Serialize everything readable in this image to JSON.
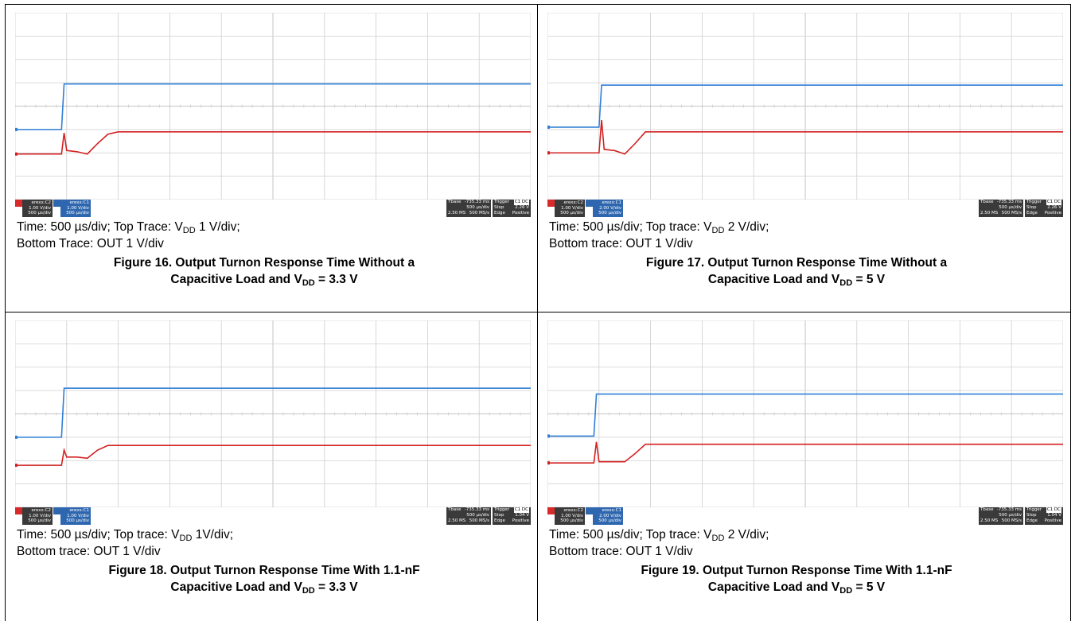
{
  "figures": [
    {
      "id": "fig16",
      "desc_line1_pre": "Time: 500 µs/div; Top Trace: V",
      "desc_line1_sub": "DD",
      "desc_line1_post": " 1 V/div;",
      "desc_line2": "Bottom Trace: OUT 1 V/div",
      "caption_line1": "Figure 16. Output Turnon Response Time Without a",
      "caption_line2_pre": "Capacitive Load and V",
      "caption_line2_sub": "DD",
      "caption_line2_post": " = 3.3 V",
      "ch1": {
        "hdr": "erexx:C2",
        "vdiv": "1.00 V/div",
        "tdiv": "500 µs/div"
      },
      "ch2": {
        "hdr": "erexx:C1",
        "vdiv": "1.00 V/div",
        "tdiv": "500 µs/div"
      },
      "tbase": {
        "label": "Tbase",
        "value": "-735.33 ms",
        "rate": "500 µs/div",
        "samples": "2.50 MS",
        "srate": "500 MS/s"
      },
      "trigger": {
        "label": "Trigger",
        "badge": "C1 DC",
        "mode": "Stop",
        "level": "2.26 V",
        "type": "Edge",
        "slope": "Positive"
      }
    },
    {
      "id": "fig17",
      "desc_line1_pre": "Time: 500 µs/div; Top trace: V",
      "desc_line1_sub": "DD",
      "desc_line1_post": " 2 V/div;",
      "desc_line2": "Bottom trace: OUT 1 V/div",
      "caption_line1": "Figure 17. Output Turnon Response Time Without a",
      "caption_line2_pre": "Capacitive Load and V",
      "caption_line2_sub": "DD",
      "caption_line2_post": " = 5 V",
      "ch1": {
        "hdr": "erexx:C2",
        "vdiv": "1.00 V/div",
        "tdiv": "500 µs/div"
      },
      "ch2": {
        "hdr": "erexx:C1",
        "vdiv": "2.00 V/div",
        "tdiv": "500 µs/div"
      },
      "tbase": {
        "label": "Tbase",
        "value": "-735.33 ms",
        "rate": "500 µs/div",
        "samples": "2.50 MS",
        "srate": "500 MS/s"
      },
      "trigger": {
        "label": "Trigger",
        "badge": "C1 DC",
        "mode": "Stop",
        "level": "2.26 V",
        "type": "Edge",
        "slope": "Positive"
      }
    },
    {
      "id": "fig18",
      "desc_line1_pre": "Time: 500 µs/div; Top trace: V",
      "desc_line1_sub": "DD",
      "desc_line1_post": " 1V/div;",
      "desc_line2": "Bottom trace: OUT 1 V/div",
      "caption_line1": "Figure 18. Output Turnon Response Time With 1.1-nF",
      "caption_line2_pre": "Capacitive Load and V",
      "caption_line2_sub": "DD",
      "caption_line2_post": " = 3.3 V",
      "ch1": {
        "hdr": "erexx:C2",
        "vdiv": "1.00 V/div",
        "tdiv": "500 µs/div"
      },
      "ch2": {
        "hdr": "erexx:C1",
        "vdiv": "1.00 V/div",
        "tdiv": "500 µs/div"
      },
      "tbase": {
        "label": "Tbase",
        "value": "-735.33 ms",
        "rate": "500 µs/div",
        "samples": "2.50 MS",
        "srate": "500 MS/s"
      },
      "trigger": {
        "label": "Trigger",
        "badge": "C1 DC",
        "mode": "Stop",
        "level": "1.04 V",
        "type": "Edge",
        "slope": "Positive"
      }
    },
    {
      "id": "fig19",
      "desc_line1_pre": "Time: 500 µs/div; Top trace: V",
      "desc_line1_sub": "DD",
      "desc_line1_post": " 2 V/div;",
      "desc_line2": "Bottom trace: OUT 1 V/div",
      "caption_line1": "Figure 19. Output Turnon Response Time With 1.1-nF",
      "caption_line2_pre": "Capacitive Load and V",
      "caption_line2_sub": "DD",
      "caption_line2_post": " = 5 V",
      "ch1": {
        "hdr": "erexx:C2",
        "vdiv": "1.00 V/div",
        "tdiv": "500 µs/div"
      },
      "ch2": {
        "hdr": "erexx:C1",
        "vdiv": "2.00 V/div",
        "tdiv": "500 µs/div"
      },
      "tbase": {
        "label": "Tbase",
        "value": "-735.33 ms",
        "rate": "500 µs/div",
        "samples": "2.50 MS",
        "srate": "500 MS/s"
      },
      "trigger": {
        "label": "Trigger",
        "badge": "C1 DC",
        "mode": "Stop",
        "level": "1.04 V",
        "type": "Edge",
        "slope": "Positive"
      }
    }
  ],
  "colors": {
    "vdd_trace": "#2f7fd6",
    "out_trace": "#d32020",
    "grid": "#cfcfcf",
    "statusbar": "#3a3a3a",
    "statusbar_blue": "#2e67b0"
  },
  "chart_data": [
    {
      "type": "line",
      "grid": true,
      "x": [
        0,
        0.9,
        0.95,
        1.0,
        1.2,
        1.4,
        1.6,
        1.8,
        2.0,
        2.5,
        10
      ],
      "series": [
        {
          "values": [
            -1.0,
            -1.0,
            0.95,
            0.95,
            0.95,
            0.95,
            0.95,
            0.95,
            0.95,
            0.95,
            0.95
          ]
        },
        {
          "values": [
            -2.05,
            -2.05,
            -1.15,
            -1.9,
            -1.95,
            -2.05,
            -1.6,
            -1.2,
            -1.1,
            -1.1,
            -1.1
          ]
        }
      ]
    },
    {
      "type": "line",
      "grid": true,
      "x": [
        0,
        1.0,
        1.05,
        1.1,
        1.3,
        1.5,
        1.7,
        1.9,
        2.1,
        2.5,
        10
      ],
      "series": [
        {
          "values": [
            -0.9,
            -0.9,
            0.9,
            0.9,
            0.9,
            0.9,
            0.9,
            0.9,
            0.9,
            0.9,
            0.9
          ]
        },
        {
          "values": [
            -2.0,
            -2.0,
            -0.6,
            -1.85,
            -1.9,
            -2.05,
            -1.6,
            -1.1,
            -1.1,
            -1.1,
            -1.1
          ]
        }
      ]
    },
    {
      "type": "line",
      "grid": true,
      "x": [
        0,
        0.9,
        0.95,
        1.0,
        1.2,
        1.4,
        1.6,
        1.8,
        2.0,
        2.5,
        10
      ],
      "series": [
        {
          "values": [
            -1.0,
            -1.0,
            1.1,
            1.1,
            1.1,
            1.1,
            1.1,
            1.1,
            1.1,
            1.1,
            1.1
          ]
        },
        {
          "values": [
            -2.2,
            -2.2,
            -1.55,
            -1.85,
            -1.85,
            -1.9,
            -1.55,
            -1.35,
            -1.35,
            -1.35,
            -1.35
          ]
        }
      ]
    },
    {
      "type": "line",
      "grid": true,
      "x": [
        0,
        0.9,
        0.95,
        1.0,
        1.3,
        1.5,
        1.7,
        1.9,
        2.1,
        2.5,
        10
      ],
      "series": [
        {
          "values": [
            -0.95,
            -0.95,
            0.85,
            0.85,
            0.85,
            0.85,
            0.85,
            0.85,
            0.85,
            0.85,
            0.85
          ]
        },
        {
          "values": [
            -2.1,
            -2.1,
            -1.2,
            -2.05,
            -2.05,
            -2.05,
            -1.7,
            -1.3,
            -1.3,
            -1.3,
            -1.3
          ]
        }
      ]
    }
  ]
}
